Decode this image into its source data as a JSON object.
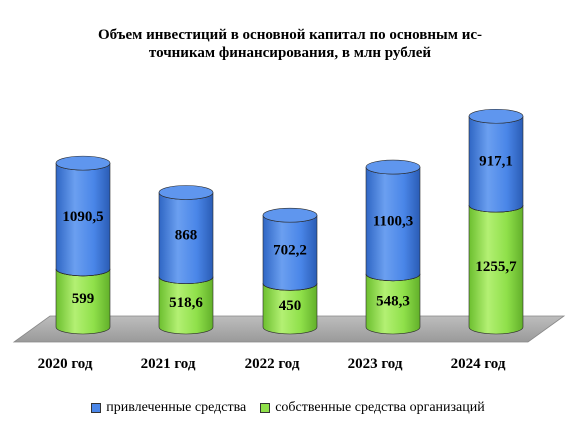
{
  "chart_data": {
    "type": "bar",
    "stacked": true,
    "style": "3d-cylinder",
    "title_lines": [
      "Объем инвестиций в основной капитал по основным ис-",
      "точникам финансирования, в млн рублей"
    ],
    "categories": [
      "2020 год",
      "2021 год",
      "2022 год",
      "2023 год",
      "2024 год"
    ],
    "series": [
      {
        "name": "собственные средства организаций",
        "values": [
          599,
          518.6,
          450,
          548.3,
          1255.7
        ],
        "labels": [
          "599",
          "518,6",
          "450",
          "548,3",
          "1255,7"
        ],
        "color": "#8fe04a"
      },
      {
        "name": "привлеченные средства",
        "values": [
          1090.5,
          868,
          702.2,
          1100.3,
          917.1
        ],
        "labels": [
          "1090,5",
          "868",
          "702,2",
          "1100,3",
          "917,1"
        ],
        "color": "#4a86e8"
      }
    ],
    "grid": false,
    "legend_position": "bottom"
  }
}
